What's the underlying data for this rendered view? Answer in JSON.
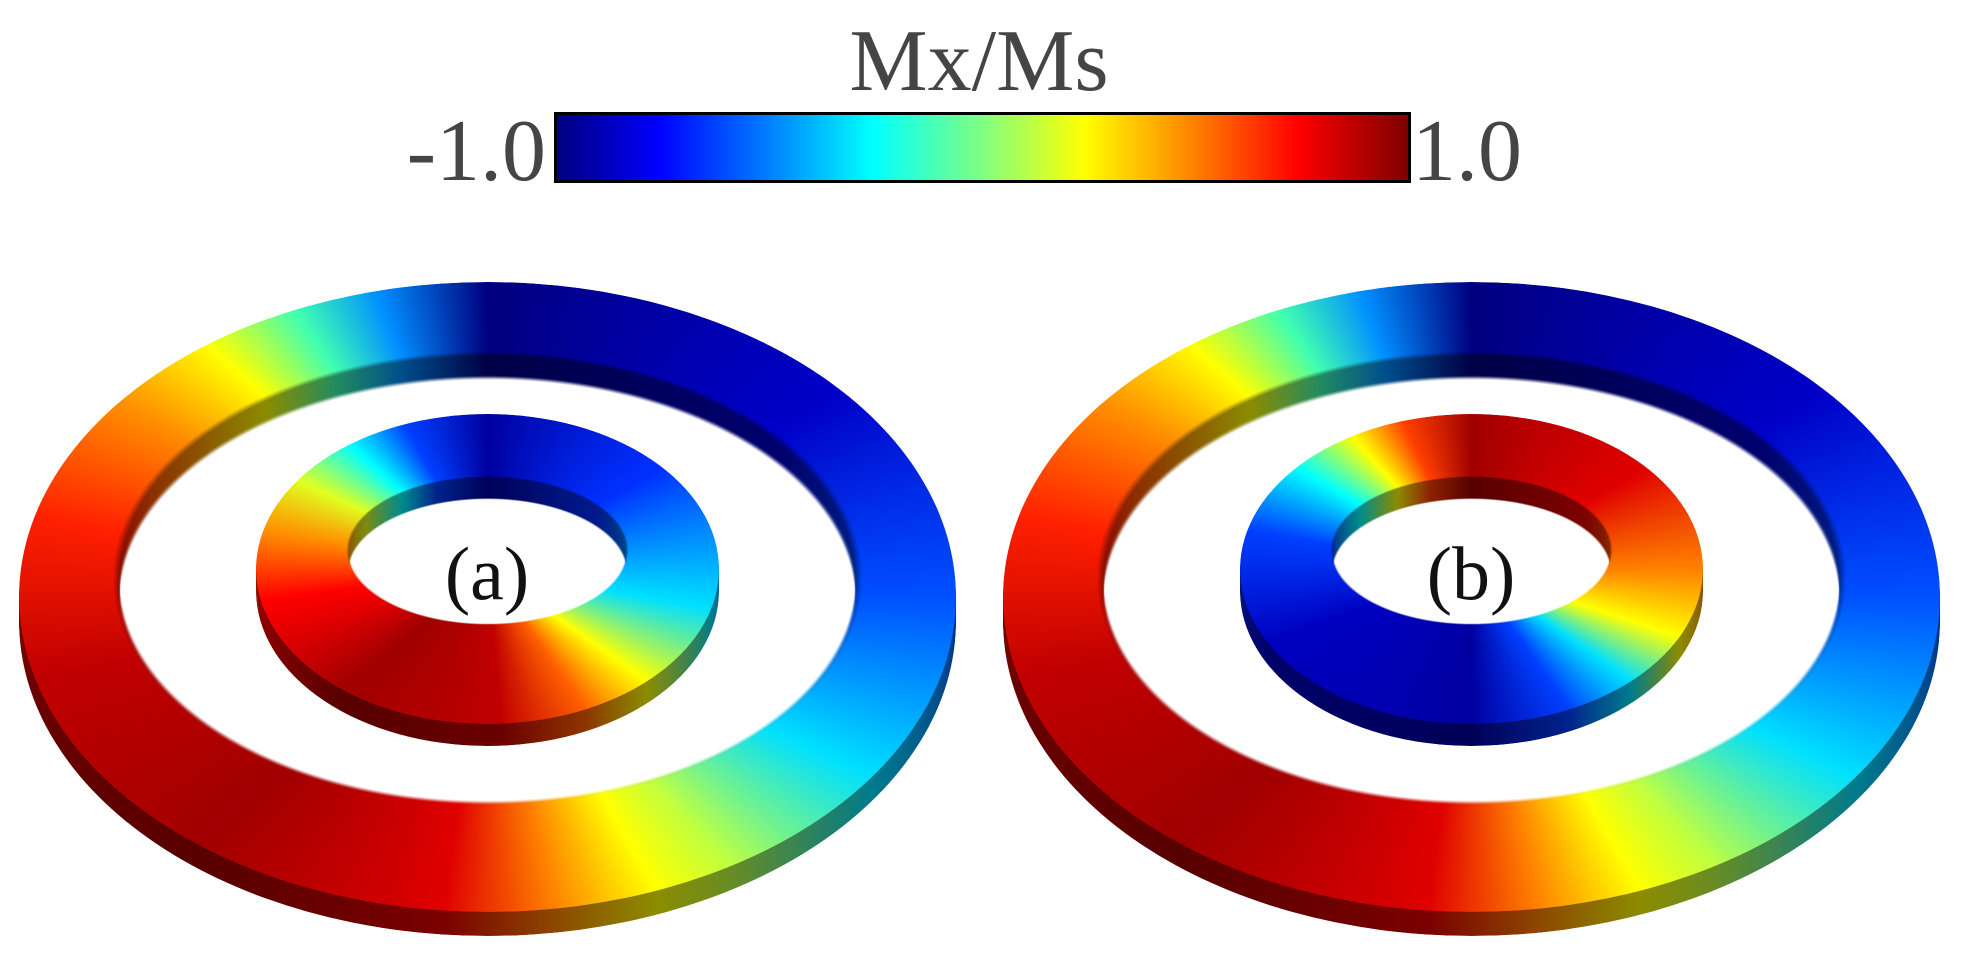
{
  "colorbar": {
    "title": "Mx/Ms",
    "min_label": "-1.0",
    "max_label": "1.0"
  },
  "panels": [
    {
      "label": "(a)"
    },
    {
      "label": "(b)"
    }
  ]
}
